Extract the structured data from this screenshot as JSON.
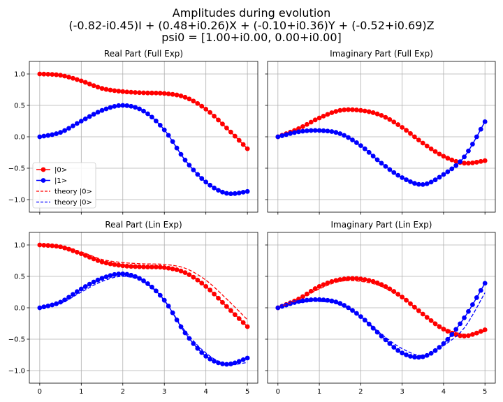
{
  "figure": {
    "title_lines": [
      "Amplitudes during evolution",
      "(-0.82-i0.45)I + (0.48+i0.26)X + (-0.10+i0.36)Y + (-0.52+i0.69)Z",
      "psi0 = [1.00+i0.00, 0.00+i0.00]"
    ]
  },
  "colors": {
    "state0": "#ff0000",
    "state1": "#0000ff",
    "grid": "#b0b0b0"
  },
  "chart_data": [
    {
      "type": "line",
      "title": "Real Part (Full Exp)",
      "xlim": [
        -0.25,
        5.25
      ],
      "ylim": [
        -1.2,
        1.2
      ],
      "xticks": [
        0,
        1,
        2,
        3,
        4,
        5
      ],
      "yticks": [
        1.0,
        0.5,
        0.0,
        -0.5,
        -1.0
      ],
      "ytick_labels": [
        "1.0",
        "0.5",
        "0.0",
        "−0.5",
        "−1.0"
      ],
      "show_xtick_labels": false,
      "show_ytick_labels": true,
      "grid": true,
      "legend": {
        "position": "lower-left",
        "entries": [
          {
            "label": "|0>",
            "color": "#ff0000",
            "style": "marker-line"
          },
          {
            "label": "|1>",
            "color": "#0000ff",
            "style": "marker-line"
          },
          {
            "label": "theory |0>",
            "color": "#ff0000",
            "style": "dashed"
          },
          {
            "label": "theory |0>",
            "color": "#0000ff",
            "style": "dashed"
          }
        ]
      },
      "series": [
        {
          "name": "|0>",
          "color": "#ff0000",
          "style": "marker-line",
          "points": [
            [
              0,
              1.0
            ],
            [
              0.5,
              0.98
            ],
            [
              1,
              0.89
            ],
            [
              1.5,
              0.77
            ],
            [
              2,
              0.72
            ],
            [
              2.5,
              0.7
            ],
            [
              3,
              0.69
            ],
            [
              3.5,
              0.63
            ],
            [
              4,
              0.44
            ],
            [
              4.5,
              0.14
            ],
            [
              5,
              -0.19
            ]
          ]
        },
        {
          "name": "|1>",
          "color": "#0000ff",
          "style": "marker-line",
          "points": [
            [
              0,
              0.0
            ],
            [
              0.5,
              0.07
            ],
            [
              1,
              0.25
            ],
            [
              1.5,
              0.42
            ],
            [
              2,
              0.5
            ],
            [
              2.5,
              0.41
            ],
            [
              3,
              0.11
            ],
            [
              3.5,
              -0.37
            ],
            [
              4,
              -0.72
            ],
            [
              4.5,
              -0.9
            ],
            [
              5,
              -0.87
            ]
          ]
        }
      ]
    },
    {
      "type": "line",
      "title": "Imaginary Part (Full Exp)",
      "xlim": [
        -0.25,
        5.25
      ],
      "ylim": [
        -1.2,
        1.2
      ],
      "xticks": [
        0,
        1,
        2,
        3,
        4,
        5
      ],
      "yticks": [
        1.0,
        0.5,
        0.0,
        -0.5,
        -1.0
      ],
      "show_xtick_labels": false,
      "show_ytick_labels": false,
      "grid": true,
      "series": [
        {
          "name": "|0>",
          "color": "#ff0000",
          "style": "marker-line",
          "points": [
            [
              0,
              0.0
            ],
            [
              0.5,
              0.13
            ],
            [
              1,
              0.3
            ],
            [
              1.5,
              0.42
            ],
            [
              2,
              0.42
            ],
            [
              2.5,
              0.34
            ],
            [
              3,
              0.15
            ],
            [
              3.5,
              -0.1
            ],
            [
              4,
              -0.31
            ],
            [
              4.5,
              -0.42
            ],
            [
              5,
              -0.38
            ]
          ]
        },
        {
          "name": "|1>",
          "color": "#0000ff",
          "style": "marker-line",
          "points": [
            [
              0,
              0.0
            ],
            [
              0.5,
              0.08
            ],
            [
              1,
              0.1
            ],
            [
              1.5,
              0.05
            ],
            [
              2,
              -0.14
            ],
            [
              2.5,
              -0.42
            ],
            [
              3,
              -0.65
            ],
            [
              3.5,
              -0.76
            ],
            [
              4,
              -0.6
            ],
            [
              4.5,
              -0.32
            ],
            [
              5,
              0.24
            ]
          ]
        }
      ]
    },
    {
      "type": "line",
      "title": "Real Part (Lin Exp)",
      "xlim": [
        -0.25,
        5.25
      ],
      "ylim": [
        -1.2,
        1.2
      ],
      "xticks": [
        0,
        1,
        2,
        3,
        4,
        5
      ],
      "xtick_labels": [
        "0",
        "1",
        "2",
        "3",
        "4",
        "5"
      ],
      "yticks": [
        1.0,
        0.5,
        0.0,
        -0.5,
        -1.0
      ],
      "ytick_labels": [
        "1.0",
        "0.5",
        "0.0",
        "−0.5",
        "−1.0"
      ],
      "show_xtick_labels": true,
      "show_ytick_labels": true,
      "grid": true,
      "series": [
        {
          "name": "|0>",
          "color": "#ff0000",
          "style": "marker-line",
          "points": [
            [
              0,
              1.0
            ],
            [
              0.5,
              0.97
            ],
            [
              1,
              0.86
            ],
            [
              1.5,
              0.73
            ],
            [
              2,
              0.67
            ],
            [
              2.5,
              0.65
            ],
            [
              3,
              0.64
            ],
            [
              3.5,
              0.56
            ],
            [
              4,
              0.34
            ],
            [
              4.5,
              0.02
            ],
            [
              5,
              -0.3
            ]
          ]
        },
        {
          "name": "|1>",
          "color": "#0000ff",
          "style": "marker-line",
          "points": [
            [
              0,
              0.0
            ],
            [
              0.5,
              0.09
            ],
            [
              1,
              0.3
            ],
            [
              1.5,
              0.47
            ],
            [
              2,
              0.54
            ],
            [
              2.5,
              0.43
            ],
            [
              3,
              0.12
            ],
            [
              3.5,
              -0.4
            ],
            [
              4,
              -0.77
            ],
            [
              4.5,
              -0.9
            ],
            [
              5,
              -0.8
            ]
          ]
        },
        {
          "name": "theory |0>",
          "color": "#ff0000",
          "style": "dashed",
          "points": [
            [
              0,
              1.0
            ],
            [
              0.5,
              0.98
            ],
            [
              1,
              0.89
            ],
            [
              1.5,
              0.77
            ],
            [
              2,
              0.72
            ],
            [
              2.5,
              0.7
            ],
            [
              3,
              0.69
            ],
            [
              3.5,
              0.63
            ],
            [
              4,
              0.44
            ],
            [
              4.5,
              0.14
            ],
            [
              5,
              -0.19
            ]
          ]
        },
        {
          "name": "theory |0>",
          "color": "#0000ff",
          "style": "dashed",
          "points": [
            [
              0,
              0.0
            ],
            [
              0.5,
              0.07
            ],
            [
              1,
              0.25
            ],
            [
              1.5,
              0.42
            ],
            [
              2,
              0.5
            ],
            [
              2.5,
              0.41
            ],
            [
              3,
              0.11
            ],
            [
              3.5,
              -0.37
            ],
            [
              4,
              -0.72
            ],
            [
              4.5,
              -0.9
            ],
            [
              5,
              -0.87
            ]
          ]
        }
      ]
    },
    {
      "type": "line",
      "title": "Imaginary Part (Lin Exp)",
      "xlim": [
        -0.25,
        5.25
      ],
      "ylim": [
        -1.2,
        1.2
      ],
      "xticks": [
        0,
        1,
        2,
        3,
        4,
        5
      ],
      "xtick_labels": [
        "0",
        "1",
        "2",
        "3",
        "4",
        "5"
      ],
      "yticks": [
        1.0,
        0.5,
        0.0,
        -0.5,
        -1.0
      ],
      "show_xtick_labels": true,
      "show_ytick_labels": false,
      "grid": true,
      "series": [
        {
          "name": "|0>",
          "color": "#ff0000",
          "style": "marker-line",
          "points": [
            [
              0,
              0.0
            ],
            [
              0.5,
              0.14
            ],
            [
              1,
              0.34
            ],
            [
              1.5,
              0.45
            ],
            [
              2,
              0.46
            ],
            [
              2.5,
              0.37
            ],
            [
              3,
              0.17
            ],
            [
              3.5,
              -0.1
            ],
            [
              4,
              -0.34
            ],
            [
              4.5,
              -0.45
            ],
            [
              5,
              -0.35
            ]
          ]
        },
        {
          "name": "|1>",
          "color": "#0000ff",
          "style": "marker-line",
          "points": [
            [
              0,
              0.0
            ],
            [
              0.5,
              0.1
            ],
            [
              1,
              0.13
            ],
            [
              1.5,
              0.07
            ],
            [
              2,
              -0.14
            ],
            [
              2.5,
              -0.45
            ],
            [
              3,
              -0.72
            ],
            [
              3.5,
              -0.78
            ],
            [
              4,
              -0.57
            ],
            [
              4.5,
              -0.16
            ],
            [
              5,
              0.39
            ]
          ]
        },
        {
          "name": "theory |0>",
          "color": "#ff0000",
          "style": "dashed",
          "points": [
            [
              0,
              0.0
            ],
            [
              0.5,
              0.13
            ],
            [
              1,
              0.3
            ],
            [
              1.5,
              0.42
            ],
            [
              2,
              0.42
            ],
            [
              2.5,
              0.34
            ],
            [
              3,
              0.15
            ],
            [
              3.5,
              -0.1
            ],
            [
              4,
              -0.31
            ],
            [
              4.5,
              -0.42
            ],
            [
              5,
              -0.38
            ]
          ]
        },
        {
          "name": "theory |0>",
          "color": "#0000ff",
          "style": "dashed",
          "points": [
            [
              0,
              0.0
            ],
            [
              0.5,
              0.08
            ],
            [
              1,
              0.1
            ],
            [
              1.5,
              0.05
            ],
            [
              2,
              -0.14
            ],
            [
              2.5,
              -0.42
            ],
            [
              3,
              -0.65
            ],
            [
              3.5,
              -0.76
            ],
            [
              4,
              -0.6
            ],
            [
              4.5,
              -0.32
            ],
            [
              5,
              0.24
            ]
          ]
        }
      ]
    }
  ]
}
